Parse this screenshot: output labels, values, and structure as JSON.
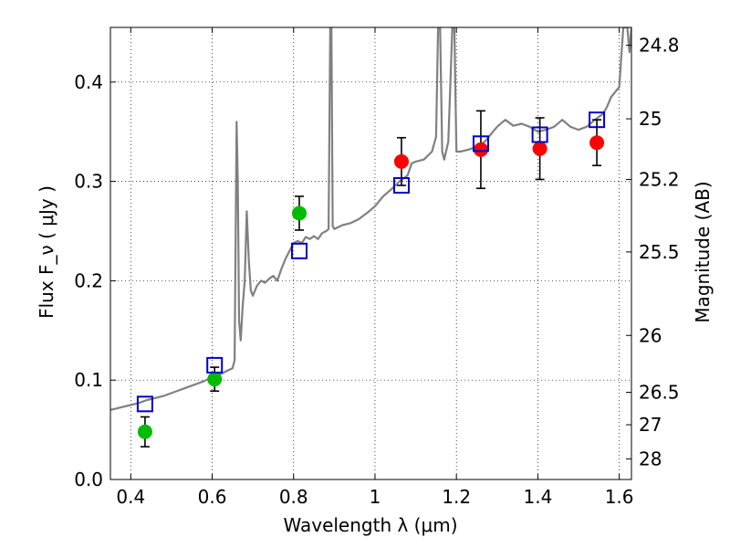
{
  "chart_data": {
    "type": "scatter",
    "title": "",
    "xlabel": "Wavelength  λ (μm)",
    "ylabel": "Flux  F_ν  ( μJy )",
    "y2label": "Magnitude (AB)",
    "xlim": [
      0.35,
      1.63
    ],
    "ylim": [
      0.0,
      0.455
    ],
    "grid": true,
    "xticks": [
      {
        "v": 0.4,
        "label": "0.4"
      },
      {
        "v": 0.6,
        "label": "0.6"
      },
      {
        "v": 0.8,
        "label": "0.8"
      },
      {
        "v": 1.0,
        "label": "1"
      },
      {
        "v": 1.2,
        "label": "1.2"
      },
      {
        "v": 1.4,
        "label": "1.4"
      },
      {
        "v": 1.6,
        "label": "1.6"
      }
    ],
    "yticks": [
      {
        "v": 0.0,
        "label": "0.0"
      },
      {
        "v": 0.1,
        "label": "0.1"
      },
      {
        "v": 0.2,
        "label": "0.2"
      },
      {
        "v": 0.3,
        "label": "0.3"
      },
      {
        "v": 0.4,
        "label": "0.4"
      }
    ],
    "y2ticks": [
      {
        "label": "24.8",
        "flux": 0.437
      },
      {
        "label": "25",
        "flux": 0.363
      },
      {
        "label": "25.2",
        "flux": 0.302
      },
      {
        "label": "25.5",
        "flux": 0.229
      },
      {
        "label": "26",
        "flux": 0.145
      },
      {
        "label": "26.5",
        "flux": 0.0877
      },
      {
        "label": "27",
        "flux": 0.0551
      },
      {
        "label": "28",
        "flux": 0.0208
      }
    ],
    "series": [
      {
        "kind": "line",
        "color": "#808080",
        "points": [
          [
            0.35,
            0.07
          ],
          [
            0.36,
            0.071
          ],
          [
            0.37,
            0.072
          ],
          [
            0.38,
            0.073
          ],
          [
            0.39,
            0.074
          ],
          [
            0.4,
            0.075
          ],
          [
            0.42,
            0.077
          ],
          [
            0.44,
            0.08
          ],
          [
            0.46,
            0.082
          ],
          [
            0.48,
            0.084
          ],
          [
            0.5,
            0.087
          ],
          [
            0.52,
            0.09
          ],
          [
            0.54,
            0.093
          ],
          [
            0.56,
            0.096
          ],
          [
            0.58,
            0.099
          ],
          [
            0.6,
            0.103
          ],
          [
            0.62,
            0.106
          ],
          [
            0.64,
            0.11
          ],
          [
            0.65,
            0.112
          ],
          [
            0.655,
            0.12
          ],
          [
            0.66,
            0.36
          ],
          [
            0.663,
            0.3
          ],
          [
            0.666,
            0.16
          ],
          [
            0.67,
            0.14
          ],
          [
            0.675,
            0.175
          ],
          [
            0.68,
            0.2
          ],
          [
            0.685,
            0.27
          ],
          [
            0.69,
            0.22
          ],
          [
            0.695,
            0.19
          ],
          [
            0.7,
            0.185
          ],
          [
            0.71,
            0.195
          ],
          [
            0.72,
            0.2
          ],
          [
            0.73,
            0.198
          ],
          [
            0.74,
            0.202
          ],
          [
            0.75,
            0.205
          ],
          [
            0.76,
            0.2
          ],
          [
            0.77,
            0.212
          ],
          [
            0.78,
            0.222
          ],
          [
            0.79,
            0.23
          ],
          [
            0.8,
            0.238
          ],
          [
            0.81,
            0.24
          ],
          [
            0.82,
            0.238
          ],
          [
            0.83,
            0.244
          ],
          [
            0.84,
            0.242
          ],
          [
            0.85,
            0.245
          ],
          [
            0.86,
            0.242
          ],
          [
            0.87,
            0.248
          ],
          [
            0.88,
            0.25
          ],
          [
            0.886,
            0.252
          ],
          [
            0.89,
            0.455
          ],
          [
            0.893,
            0.455
          ],
          [
            0.896,
            0.255
          ],
          [
            0.9,
            0.252
          ],
          [
            0.92,
            0.256
          ],
          [
            0.94,
            0.258
          ],
          [
            0.96,
            0.262
          ],
          [
            0.98,
            0.268
          ],
          [
            1.0,
            0.275
          ],
          [
            1.02,
            0.285
          ],
          [
            1.04,
            0.292
          ],
          [
            1.06,
            0.3
          ],
          [
            1.08,
            0.306
          ],
          [
            1.09,
            0.318
          ],
          [
            1.1,
            0.32
          ],
          [
            1.12,
            0.322
          ],
          [
            1.14,
            0.33
          ],
          [
            1.15,
            0.345
          ],
          [
            1.155,
            0.455
          ],
          [
            1.16,
            0.455
          ],
          [
            1.165,
            0.33
          ],
          [
            1.17,
            0.322
          ],
          [
            1.18,
            0.34
          ],
          [
            1.19,
            0.455
          ],
          [
            1.195,
            0.455
          ],
          [
            1.2,
            0.33
          ],
          [
            1.21,
            0.33
          ],
          [
            1.23,
            0.332
          ],
          [
            1.25,
            0.335
          ],
          [
            1.27,
            0.34
          ],
          [
            1.29,
            0.35
          ],
          [
            1.3,
            0.355
          ],
          [
            1.32,
            0.362
          ],
          [
            1.34,
            0.356
          ],
          [
            1.36,
            0.358
          ],
          [
            1.38,
            0.355
          ],
          [
            1.4,
            0.35
          ],
          [
            1.42,
            0.352
          ],
          [
            1.44,
            0.355
          ],
          [
            1.46,
            0.362
          ],
          [
            1.48,
            0.355
          ],
          [
            1.5,
            0.352
          ],
          [
            1.52,
            0.355
          ],
          [
            1.54,
            0.362
          ],
          [
            1.56,
            0.368
          ],
          [
            1.57,
            0.375
          ],
          [
            1.58,
            0.385
          ],
          [
            1.59,
            0.39
          ],
          [
            1.6,
            0.395
          ],
          [
            1.61,
            0.455
          ],
          [
            1.62,
            0.455
          ],
          [
            1.625,
            0.43
          ],
          [
            1.63,
            0.455
          ]
        ]
      },
      {
        "kind": "points",
        "marker": "circle",
        "color": "#00bb00",
        "points": [
          {
            "x": 0.435,
            "y": 0.048,
            "err": 0.015
          },
          {
            "x": 0.606,
            "y": 0.101,
            "err": 0.012
          },
          {
            "x": 0.814,
            "y": 0.268,
            "err": 0.017
          }
        ]
      },
      {
        "kind": "points",
        "marker": "circle",
        "color": "#ff0000",
        "points": [
          {
            "x": 1.065,
            "y": 0.32,
            "err": 0.024
          },
          {
            "x": 1.26,
            "y": 0.332,
            "err": 0.039
          },
          {
            "x": 1.405,
            "y": 0.333,
            "err": 0.031
          },
          {
            "x": 1.545,
            "y": 0.339,
            "err": 0.023
          }
        ]
      },
      {
        "kind": "points",
        "marker": "square",
        "color": "#0000cc",
        "points": [
          {
            "x": 0.435,
            "y": 0.076
          },
          {
            "x": 0.606,
            "y": 0.115
          },
          {
            "x": 0.814,
            "y": 0.23
          },
          {
            "x": 1.065,
            "y": 0.296
          },
          {
            "x": 1.26,
            "y": 0.338
          },
          {
            "x": 1.405,
            "y": 0.347
          },
          {
            "x": 1.545,
            "y": 0.362
          }
        ]
      }
    ]
  }
}
